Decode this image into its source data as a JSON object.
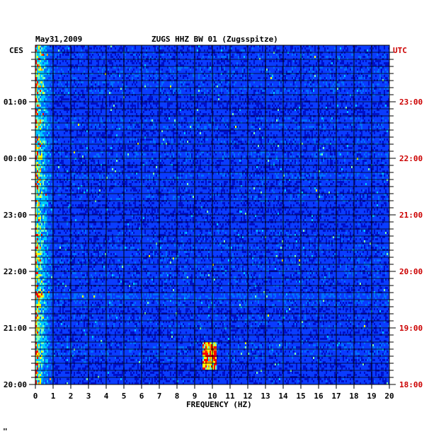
{
  "chart_data": {
    "type": "heatmap",
    "date_label": "May31,2009",
    "title": "ZUGS HHZ BW 01 (Zugsspitze)",
    "left_timezone": "CES",
    "right_timezone": "UTC",
    "xlabel": "FREQUENCY (HZ)",
    "xlim": [
      0,
      20
    ],
    "x_ticks": [
      "0",
      "1",
      "2",
      "3",
      "4",
      "5",
      "6",
      "7",
      "8",
      "9",
      "10",
      "11",
      "12",
      "13",
      "14",
      "15",
      "16",
      "17",
      "18",
      "19",
      "20"
    ],
    "left_time_ticks": [
      "01:00",
      "00:00",
      "23:00",
      "22:00",
      "21:00",
      "20:00"
    ],
    "right_time_ticks": [
      "23:00",
      "22:00",
      "21:00",
      "20:00",
      "19:00",
      "18:00"
    ],
    "colors": {
      "background": "#0010c8",
      "low": "#0000cc",
      "mid": "#00c8ff",
      "high": "#ffff00",
      "peak": "#ff0000",
      "left_axis_text": "#000000",
      "right_axis_text": "#cc0000"
    },
    "features": {
      "low_frequency_energy_hz": [
        0,
        1
      ],
      "event_frequency_hz": [
        9.4,
        10.2
      ]
    }
  },
  "footer_mark": "\""
}
